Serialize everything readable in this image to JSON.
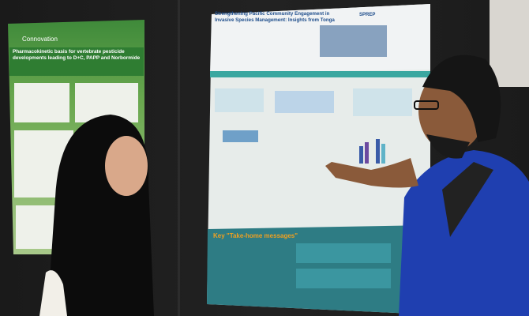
{
  "scene": {
    "left_poster": {
      "brand": "Connovation",
      "title": "Pharmacokinetic basis for vertebrate pesticide developments leading to D+C, PAPP and Norbormide"
    },
    "right_poster": {
      "title": "Strengthening Pacific Community Engagement in Invasive Species Management: Insights from Tonga",
      "logo": "SPREP",
      "key_heading": "Key \"Take-home messages\""
    }
  }
}
